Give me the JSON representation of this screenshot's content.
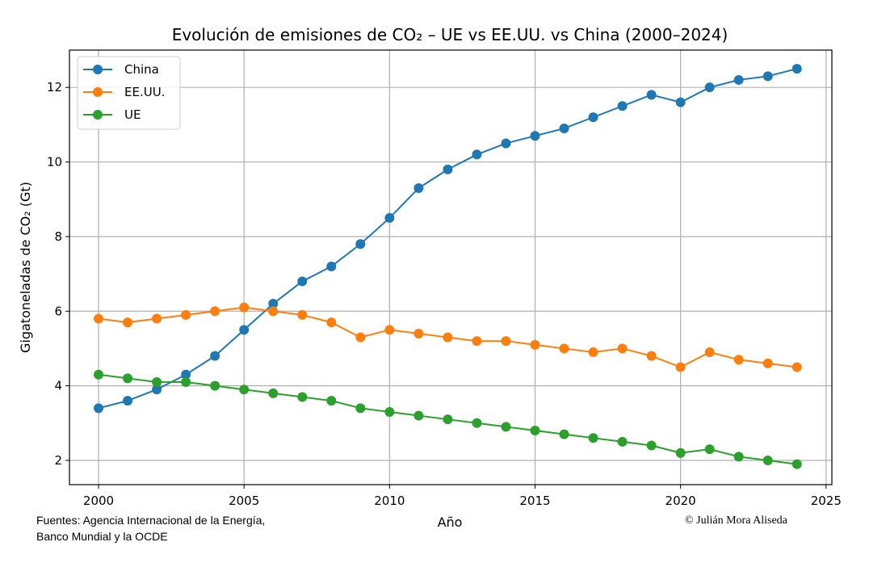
{
  "chart_data": {
    "type": "line",
    "title": "Evolución de emisiones de CO₂ – UE vs EE.UU. vs China (2000–2024)",
    "xlabel": "Año",
    "ylabel": "Gigatoneladas de CO₂ (Gt)",
    "xlim": [
      1999,
      2025.2
    ],
    "ylim": [
      1.35,
      13.0
    ],
    "xticks": [
      2000,
      2005,
      2010,
      2015,
      2020,
      2025
    ],
    "yticks": [
      2,
      4,
      6,
      8,
      10,
      12
    ],
    "grid": true,
    "legend_position": "top-left",
    "x": [
      2000,
      2001,
      2002,
      2003,
      2004,
      2005,
      2006,
      2007,
      2008,
      2009,
      2010,
      2011,
      2012,
      2013,
      2014,
      2015,
      2016,
      2017,
      2018,
      2019,
      2020,
      2021,
      2022,
      2023,
      2024
    ],
    "series": [
      {
        "name": "China",
        "color": "#1f77b4",
        "values": [
          3.4,
          3.6,
          3.9,
          4.3,
          4.8,
          5.5,
          6.2,
          6.8,
          7.2,
          7.8,
          8.5,
          9.3,
          9.8,
          10.2,
          10.5,
          10.7,
          10.9,
          11.2,
          11.5,
          11.8,
          11.6,
          12.0,
          12.2,
          12.3,
          12.5
        ]
      },
      {
        "name": "EE.UU.",
        "color": "#ff7f0e",
        "values": [
          5.8,
          5.7,
          5.8,
          5.9,
          6.0,
          6.1,
          6.0,
          5.9,
          5.7,
          5.3,
          5.5,
          5.4,
          5.3,
          5.2,
          5.2,
          5.1,
          5.0,
          4.9,
          5.0,
          4.8,
          4.5,
          4.9,
          4.7,
          4.6,
          4.5
        ]
      },
      {
        "name": "UE",
        "color": "#2ca02c",
        "values": [
          4.3,
          4.2,
          4.1,
          4.1,
          4.0,
          3.9,
          3.8,
          3.7,
          3.6,
          3.4,
          3.3,
          3.2,
          3.1,
          3.0,
          2.9,
          2.8,
          2.7,
          2.6,
          2.5,
          2.4,
          2.2,
          2.3,
          2.1,
          2.0,
          1.9
        ]
      }
    ]
  },
  "footer": {
    "source_line1": "Fuentes: Agencia Internacional de la Energía,",
    "source_line2": "Banco Mundial y la OCDE",
    "copyright": "© Julián Mora Aliseda"
  }
}
